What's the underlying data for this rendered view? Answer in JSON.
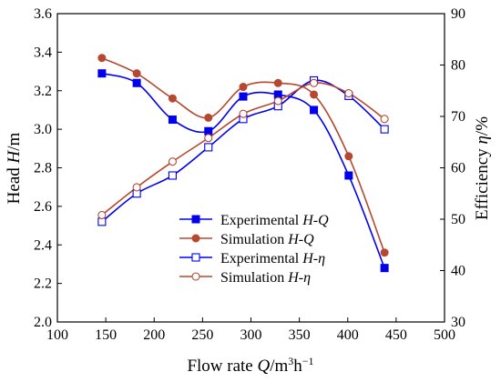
{
  "chart_data": {
    "type": "line",
    "title": "",
    "xlabel": {
      "text": "Flow rate",
      "italic": "Q",
      "unit_prefix": "/m",
      "unit_sup1": "3",
      "unit_mid": "h",
      "unit_sup2": "−1"
    },
    "ylabel_left": {
      "text": "Head",
      "italic": "H",
      "unit": "/m"
    },
    "ylabel_right": {
      "text": "Efficiency",
      "italic": "η",
      "unit": "/%"
    },
    "xlim": [
      100,
      500
    ],
    "ylim_left": [
      2.0,
      3.6
    ],
    "ylim_right": [
      30,
      90
    ],
    "xticks": [
      "100",
      "150",
      "200",
      "250",
      "300",
      "350",
      "400",
      "450",
      "500"
    ],
    "yticks_left": [
      "2.0",
      "2.2",
      "2.4",
      "2.6",
      "2.8",
      "3.0",
      "3.2",
      "3.4",
      "3.6"
    ],
    "yticks_right": [
      "30",
      "40",
      "50",
      "60",
      "70",
      "80",
      "90"
    ],
    "grid": false,
    "legend_placement": "lower-center",
    "series": [
      {
        "name": "Experimental H-Q",
        "label_prefix": "Experimental ",
        "label_italic": "H",
        "label_suffix": "-Q",
        "label_suffix_italic": true,
        "axis": "left",
        "color": "#0000ee",
        "marker": "filled-square",
        "x": [
          146,
          182,
          219,
          256,
          292,
          328,
          365,
          401,
          438
        ],
        "y": [
          3.29,
          3.24,
          3.05,
          2.99,
          3.17,
          3.18,
          3.1,
          2.76,
          2.28
        ]
      },
      {
        "name": "Simulation H-Q",
        "label_prefix": "Simulation ",
        "label_italic": "H",
        "label_suffix": "-Q",
        "label_suffix_italic": true,
        "axis": "left",
        "color": "#b5482f",
        "marker": "filled-circle",
        "x": [
          146,
          182,
          219,
          256,
          292,
          328,
          365,
          401,
          438
        ],
        "y": [
          3.37,
          3.29,
          3.16,
          3.06,
          3.22,
          3.24,
          3.18,
          2.86,
          2.36
        ]
      },
      {
        "name": "Experimental H-η",
        "label_prefix": "Experimental ",
        "label_italic": "H",
        "label_suffix": "-η",
        "label_suffix_italic": true,
        "axis": "right",
        "color": "#0000ee",
        "marker": "open-square",
        "x": [
          146,
          182,
          219,
          256,
          292,
          328,
          365,
          401,
          438
        ],
        "y": [
          49.5,
          55.0,
          58.5,
          64.0,
          69.5,
          72.0,
          77.0,
          74.0,
          67.5
        ]
      },
      {
        "name": "Simulation H-η",
        "label_prefix": "Simulation ",
        "label_italic": "H",
        "label_suffix": "-η",
        "label_suffix_italic": true,
        "axis": "right",
        "color": "#b5482f",
        "marker": "open-circle",
        "x": [
          146,
          182,
          219,
          256,
          292,
          328,
          365,
          401,
          438
        ],
        "y": [
          50.8,
          56.2,
          61.2,
          65.8,
          70.5,
          73.0,
          76.5,
          74.5,
          69.5
        ]
      }
    ]
  }
}
